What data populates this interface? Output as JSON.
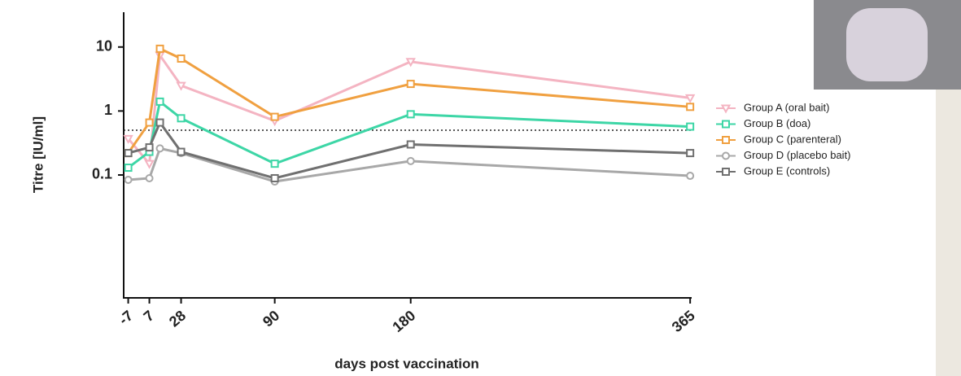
{
  "chart_data": {
    "type": "line",
    "x_label": "days post vaccination",
    "y_label": "Titre [IU/ml]",
    "x": [
      -7,
      7,
      14,
      28,
      90,
      180,
      365
    ],
    "xlim": [
      -10,
      366
    ],
    "xticks": [
      -7,
      7,
      28,
      90,
      180,
      365
    ],
    "ylim": [
      0.0012,
      35
    ],
    "yticks": [
      0.1,
      1,
      10
    ],
    "log_y": true,
    "reference_line": 0.5,
    "legend": "right",
    "series": [
      {
        "name": "Group A (oral bait)",
        "color": "#f4b4c2",
        "marker": "triangle",
        "values": [
          0.37,
          0.15,
          7.4,
          2.5,
          0.7,
          5.9,
          1.6
        ]
      },
      {
        "name": "Group B (doa)",
        "color": "#3dd6a6",
        "marker": "square",
        "values": [
          0.13,
          0.23,
          1.4,
          0.77,
          0.15,
          0.89,
          0.57
        ]
      },
      {
        "name": "Group C (parenteral)",
        "color": "#f0a040",
        "marker": "square",
        "values": [
          0.22,
          0.66,
          9.4,
          6.6,
          0.81,
          2.65,
          1.16
        ]
      },
      {
        "name": "Group D (placebo bait)",
        "color": "#a8a8a8",
        "marker": "circle",
        "values": [
          0.084,
          0.089,
          0.26,
          0.22,
          0.079,
          0.165,
          0.097
        ]
      },
      {
        "name": "Group E (controls)",
        "color": "#707070",
        "marker": "square",
        "values": [
          0.22,
          0.27,
          0.66,
          0.23,
          0.089,
          0.3,
          0.22
        ]
      }
    ]
  }
}
